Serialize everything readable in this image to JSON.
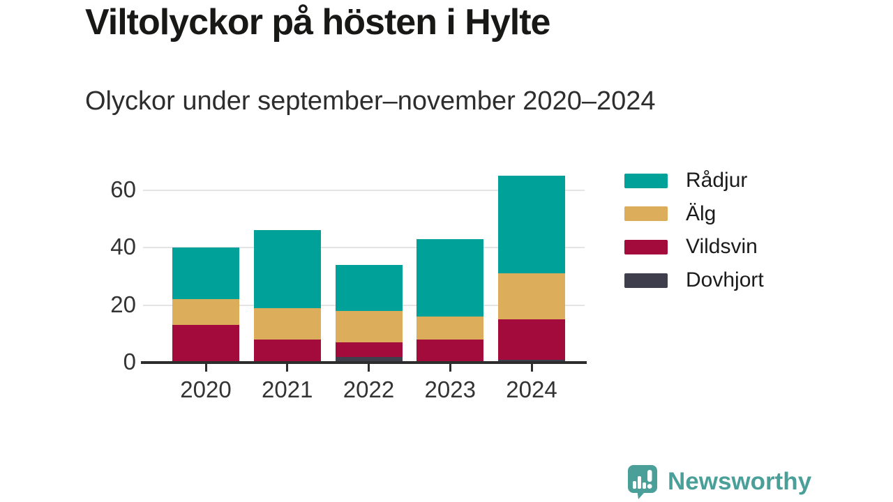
{
  "header": {
    "title": "Viltolyckor på hösten i Hylte",
    "subtitle": "Olyckor under september–november 2020–2024"
  },
  "chart_data": {
    "type": "bar",
    "stacked": true,
    "title": "Viltolyckor på hösten i Hylte",
    "subtitle": "Olyckor under september–november 2020–2024",
    "categories": [
      "2020",
      "2021",
      "2022",
      "2023",
      "2024"
    ],
    "series": [
      {
        "name": "Dovhjort",
        "key": "dovhjort",
        "color": "#3e3e4c",
        "values": [
          0,
          0,
          2,
          0,
          1
        ]
      },
      {
        "name": "Vildsvin",
        "key": "vildsvin",
        "color": "#a40b3d",
        "values": [
          13,
          8,
          5,
          8,
          14
        ]
      },
      {
        "name": "Älg",
        "key": "alg",
        "color": "#dcae5c",
        "values": [
          9,
          11,
          11,
          8,
          16
        ]
      },
      {
        "name": "Rådjur",
        "key": "radjur",
        "color": "#00a199",
        "values": [
          18,
          27,
          16,
          27,
          34
        ]
      }
    ],
    "legend": [
      {
        "label": "Rådjur",
        "key": "radjur",
        "color": "#00a199"
      },
      {
        "label": "Älg",
        "key": "alg",
        "color": "#dcae5c"
      },
      {
        "label": "Vildsvin",
        "key": "vildsvin",
        "color": "#a40b3d"
      },
      {
        "label": "Dovhjort",
        "key": "dovhjort",
        "color": "#3e3e4c"
      }
    ],
    "yticks": [
      0,
      20,
      40,
      60
    ],
    "ylim": [
      0,
      68
    ],
    "xlabel": "",
    "ylabel": "",
    "grid": true,
    "legend_position": "right"
  },
  "footer": {
    "brand": "Newsworthy",
    "brand_color": "#4b9f99"
  }
}
